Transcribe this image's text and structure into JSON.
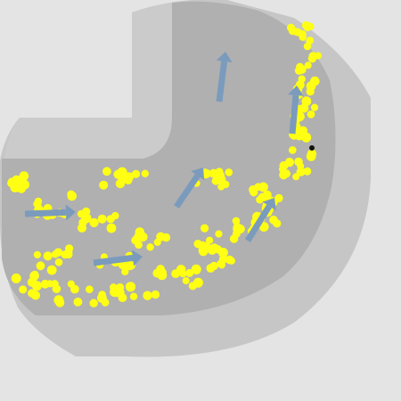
{
  "scene": {
    "title": "",
    "colors": {
      "page_background": "#e4e4e4",
      "outer_wall": "#c6c6c6",
      "track_floor": "#b0b0b0",
      "inner_step": "#cbcbcb",
      "particle": "#ffff14",
      "flow_arrow": "#7b9bbd",
      "agent": "#111111"
    },
    "flow_direction": "counter-clockwise",
    "particle_count": 238,
    "agent": {
      "shape": "dot",
      "icon": "agent-dot-icon"
    }
  }
}
